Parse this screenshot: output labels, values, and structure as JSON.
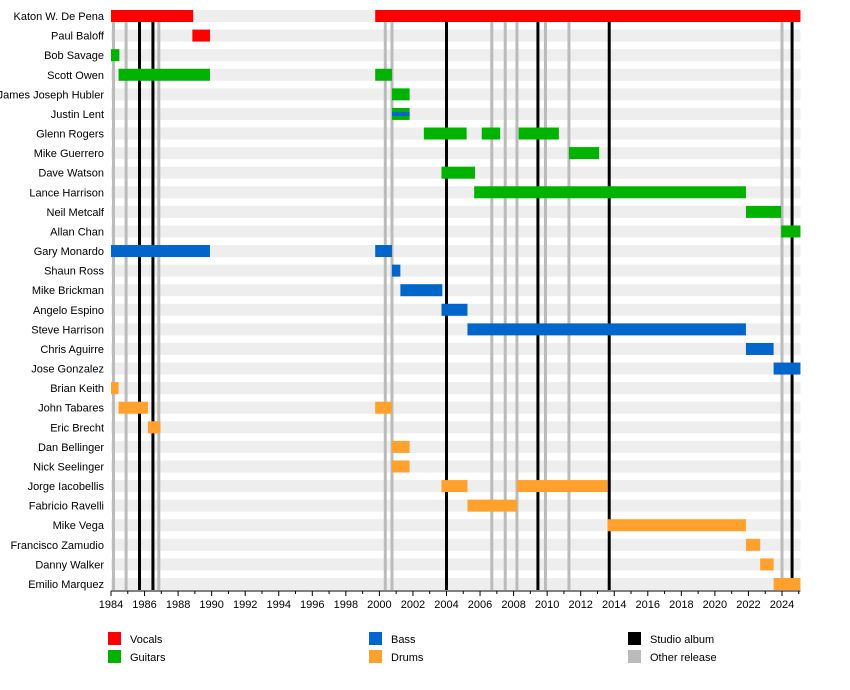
{
  "chart_data": {
    "type": "timeline",
    "xlim": [
      1984,
      2025.1
    ],
    "x_ticks": [
      1984,
      1986,
      1988,
      1990,
      1992,
      1994,
      1996,
      1998,
      2000,
      2002,
      2004,
      2006,
      2008,
      2010,
      2012,
      2014,
      2016,
      2018,
      2020,
      2022,
      2024
    ],
    "colors": {
      "Vocals": "#ff0000",
      "Guitars": "#00b300",
      "Bass": "#0066cc",
      "Drums": "#ffa12c",
      "Studio album": "#000000",
      "Other release": "#bbbbbb"
    },
    "legend": [
      {
        "label": "Vocals",
        "role": "Vocals"
      },
      {
        "label": "Guitars",
        "role": "Guitars"
      },
      {
        "label": "Bass",
        "role": "Bass"
      },
      {
        "label": "Drums",
        "role": "Drums"
      },
      {
        "label": "Studio album",
        "role": "Studio album"
      },
      {
        "label": "Other release",
        "role": "Other release"
      }
    ],
    "members": [
      {
        "name": "Katon W. De Pena",
        "role": "Vocals",
        "periods": [
          [
            1984,
            1988.9
          ],
          [
            1999.75,
            2025.1
          ]
        ]
      },
      {
        "name": "Paul Baloff",
        "role": "Vocals",
        "periods": [
          [
            1988.85,
            1989.9
          ]
        ]
      },
      {
        "name": "Bob Savage",
        "role": "Guitars",
        "periods": [
          [
            1984,
            1984.5
          ]
        ]
      },
      {
        "name": "Scott Owen",
        "role": "Guitars",
        "periods": [
          [
            1984.45,
            1989.9
          ],
          [
            1999.75,
            2000.75
          ]
        ]
      },
      {
        "name": "James Joseph Hubler",
        "role": "Guitars",
        "periods": [
          [
            2000.75,
            2001.8
          ]
        ]
      },
      {
        "name": "Justin Lent",
        "role": "Guitars",
        "secondary": "Bass",
        "periods": [
          [
            2000.75,
            2001.8
          ]
        ]
      },
      {
        "name": "Glenn Rogers",
        "role": "Guitars",
        "periods": [
          [
            2002.65,
            2005.2
          ],
          [
            2006.1,
            2007.2
          ],
          [
            2008.3,
            2010.7
          ]
        ]
      },
      {
        "name": "Mike Guerrero",
        "role": "Guitars",
        "periods": [
          [
            2011.3,
            2013.1
          ]
        ]
      },
      {
        "name": "Dave Watson",
        "role": "Guitars",
        "periods": [
          [
            2003.7,
            2005.7
          ]
        ]
      },
      {
        "name": "Lance Harrison",
        "role": "Guitars",
        "periods": [
          [
            2005.65,
            2021.85
          ]
        ]
      },
      {
        "name": "Neil Metcalf",
        "role": "Guitars",
        "periods": [
          [
            2021.85,
            2023.95
          ]
        ]
      },
      {
        "name": "Allan Chan",
        "role": "Guitars",
        "periods": [
          [
            2023.95,
            2025.1
          ]
        ]
      },
      {
        "name": "Gary Monardo",
        "role": "Bass",
        "periods": [
          [
            1984,
            1989.9
          ],
          [
            1999.75,
            2000.75
          ]
        ]
      },
      {
        "name": "Shaun Ross",
        "role": "Bass",
        "periods": [
          [
            2000.75,
            2001.25
          ]
        ]
      },
      {
        "name": "Mike Brickman",
        "role": "Bass",
        "periods": [
          [
            2001.25,
            2003.75
          ]
        ]
      },
      {
        "name": "Angelo Espino",
        "role": "Bass",
        "periods": [
          [
            2003.7,
            2005.25
          ]
        ]
      },
      {
        "name": "Steve Harrison",
        "role": "Bass",
        "periods": [
          [
            2005.25,
            2021.85
          ]
        ]
      },
      {
        "name": "Chris Aguirre",
        "role": "Bass",
        "periods": [
          [
            2021.85,
            2023.5
          ]
        ]
      },
      {
        "name": "Jose Gonzalez",
        "role": "Bass",
        "periods": [
          [
            2023.5,
            2025.1
          ]
        ]
      },
      {
        "name": "Brian Keith",
        "role": "Drums",
        "periods": [
          [
            1984,
            1984.45
          ]
        ]
      },
      {
        "name": "John Tabares",
        "role": "Drums",
        "periods": [
          [
            1984.45,
            1986.2
          ],
          [
            1999.75,
            2000.75
          ]
        ]
      },
      {
        "name": "Eric Brecht",
        "role": "Drums",
        "periods": [
          [
            1986.2,
            1986.95
          ]
        ]
      },
      {
        "name": "Dan Bellinger",
        "role": "Drums",
        "periods": [
          [
            2000.75,
            2001.8
          ]
        ]
      },
      {
        "name": "Nick Seelinger",
        "role": "Drums",
        "periods": [
          [
            2000.75,
            2001.8
          ]
        ]
      },
      {
        "name": "Jorge Iacobellis",
        "role": "Drums",
        "periods": [
          [
            2003.7,
            2005.25
          ],
          [
            2008.2,
            2013.6
          ]
        ]
      },
      {
        "name": "Fabricio Ravelli",
        "role": "Drums",
        "periods": [
          [
            2005.25,
            2008.2
          ]
        ]
      },
      {
        "name": "Mike Vega",
        "role": "Drums",
        "periods": [
          [
            2013.6,
            2021.85
          ]
        ]
      },
      {
        "name": "Francisco Zamudio",
        "role": "Drums",
        "periods": [
          [
            2021.85,
            2022.7
          ]
        ]
      },
      {
        "name": "Danny Walker",
        "role": "Drums",
        "periods": [
          [
            2022.7,
            2023.5
          ]
        ]
      },
      {
        "name": "Emilio Marquez",
        "role": "Drums",
        "periods": [
          [
            2023.5,
            2025.1
          ]
        ]
      }
    ],
    "studio_albums": [
      1985.7,
      1986.5,
      2004.0,
      2009.45,
      2013.7,
      2024.6
    ],
    "other_releases": [
      1984.15,
      1984.9,
      1986.85,
      2000.35,
      2000.75,
      2006.7,
      2007.5,
      2008.2,
      2009.9,
      2011.3,
      2024.0
    ]
  }
}
